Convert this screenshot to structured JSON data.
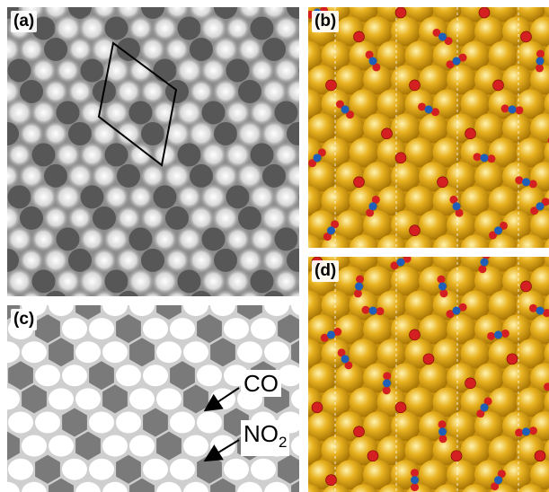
{
  "panels": {
    "a": {
      "label": "(a)"
    },
    "b": {
      "label": "(b)"
    },
    "c": {
      "label": "(c)",
      "annotations": {
        "co": "CO",
        "no2_main": "NO",
        "no2_sub": "2"
      }
    },
    "d": {
      "label": "(d)"
    }
  },
  "colors": {
    "gold_atom": "#e8b21f",
    "nitrogen": "#1f5fb8",
    "oxygen": "#d42020",
    "stm_dark": "#4a4a4a",
    "stm_bright": "#f2f2f2"
  }
}
